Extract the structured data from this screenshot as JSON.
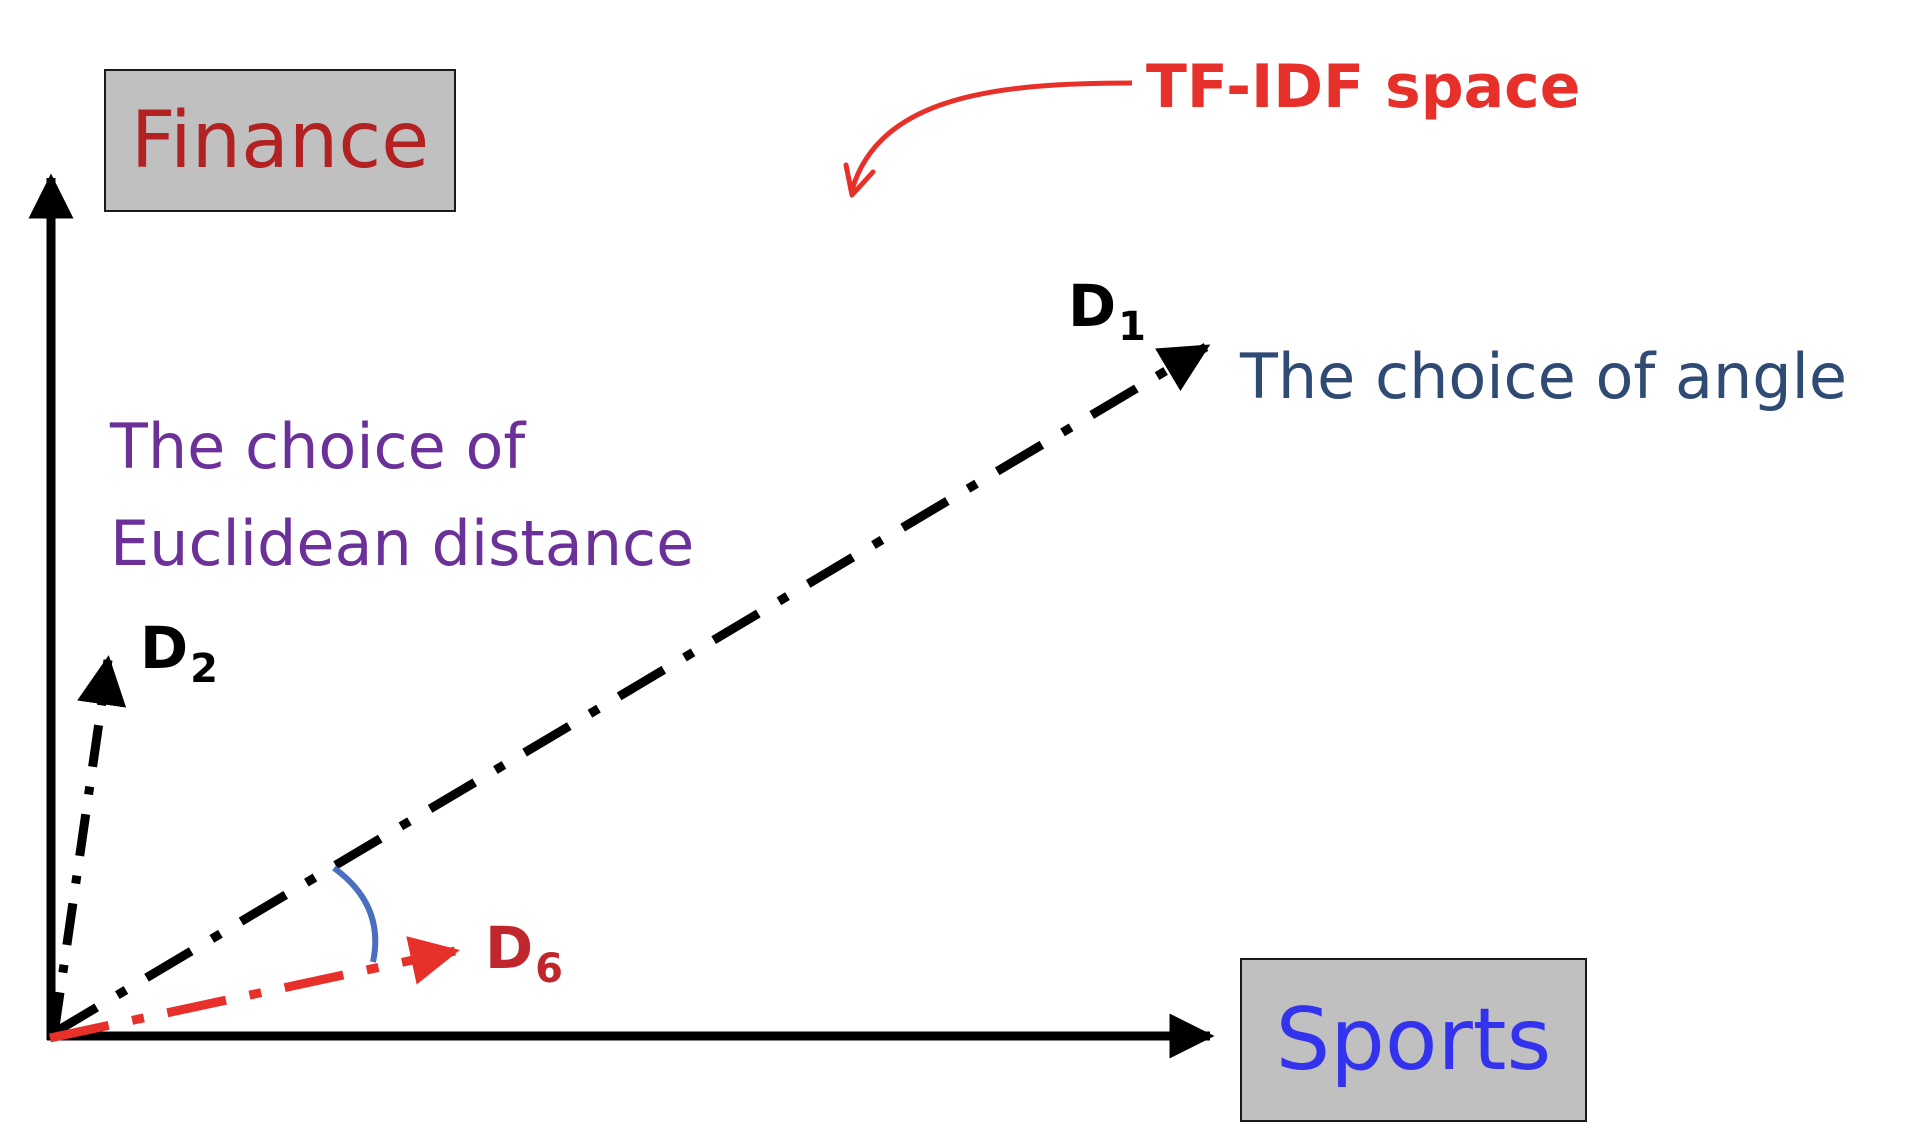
{
  "axes": {
    "y_label": "Finance",
    "x_label": "Sports"
  },
  "vectors": [
    {
      "id": "D1",
      "letter": "D",
      "index": "1"
    },
    {
      "id": "D2",
      "letter": "D",
      "index": "2"
    },
    {
      "id": "D6",
      "letter": "D",
      "index": "6"
    }
  ],
  "annotations": {
    "space_label": "TF-IDF space",
    "euclidean_line1": "The choice of",
    "euclidean_line2": "Euclidean distance",
    "angle_label": "The choice of angle"
  },
  "colors": {
    "axis": "#000000",
    "box_fill": "#c0c0c0",
    "finance_text": "#b22222",
    "sports_text": "#3333ee",
    "space_label": "#e8302a",
    "vector_d1": "#000000",
    "vector_d2": "#000000",
    "vector_d6": "#e8302a",
    "label_d6": "#c0272d",
    "euclidean_text": "#6b3199",
    "angle_text": "#2f4a73",
    "angle_arc": "#4a6fbf"
  }
}
